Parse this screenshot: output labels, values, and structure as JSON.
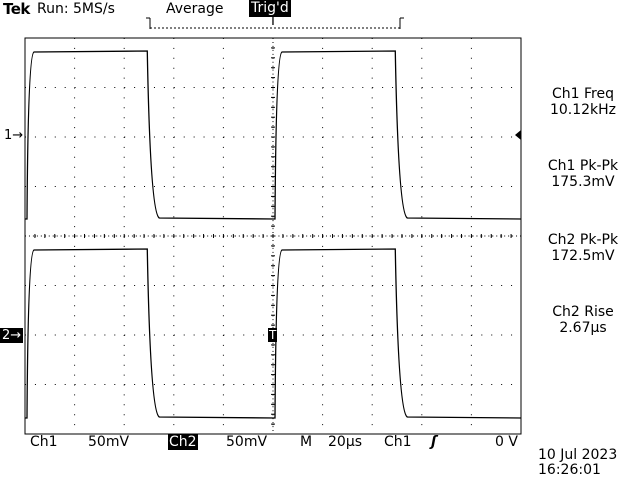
{
  "header": {
    "brand": "Tek",
    "run_status": "Run: 5MS/s",
    "acquisition_mode": "Average",
    "trigger_state": "Trig'd"
  },
  "markers": {
    "ch1_marker": "1→",
    "ch2_marker": "2→",
    "trigger_position": "T",
    "trigger_marker": "T"
  },
  "measurements": [
    {
      "label": "Ch1 Freq",
      "value": "10.12kHz"
    },
    {
      "label": "Ch1 Pk-Pk",
      "value": "175.3mV"
    },
    {
      "label": "Ch2 Pk-Pk",
      "value": "172.5mV"
    },
    {
      "label": "Ch2 Rise",
      "value": "2.67µs"
    }
  ],
  "status_bar": {
    "ch1_label": "Ch1",
    "ch1_scale": "50mV",
    "ch2_label": "Ch2",
    "ch2_scale": "50mV",
    "main_label": "M",
    "timebase": "20µs",
    "trigger_source": "Ch1",
    "trigger_slope": "ʃ",
    "trigger_level": "0 V"
  },
  "datetime": {
    "date": "10 Jul 2023",
    "time": "16:26:01"
  },
  "chart_data": {
    "type": "line",
    "grid": true,
    "divisions": {
      "horizontal": 10,
      "vertical": 8
    },
    "colors": {
      "trace": "#000000",
      "background": "#ffffff",
      "grid": "#000000"
    },
    "series": [
      {
        "name": "Ch1",
        "waveform": "square",
        "frequency": "10.12kHz",
        "amplitude_pk_pk": "175.3mV"
      },
      {
        "name": "Ch2",
        "waveform": "square",
        "rise_time": "2.67µs",
        "amplitude_pk_pk": "172.5mV"
      }
    ]
  }
}
